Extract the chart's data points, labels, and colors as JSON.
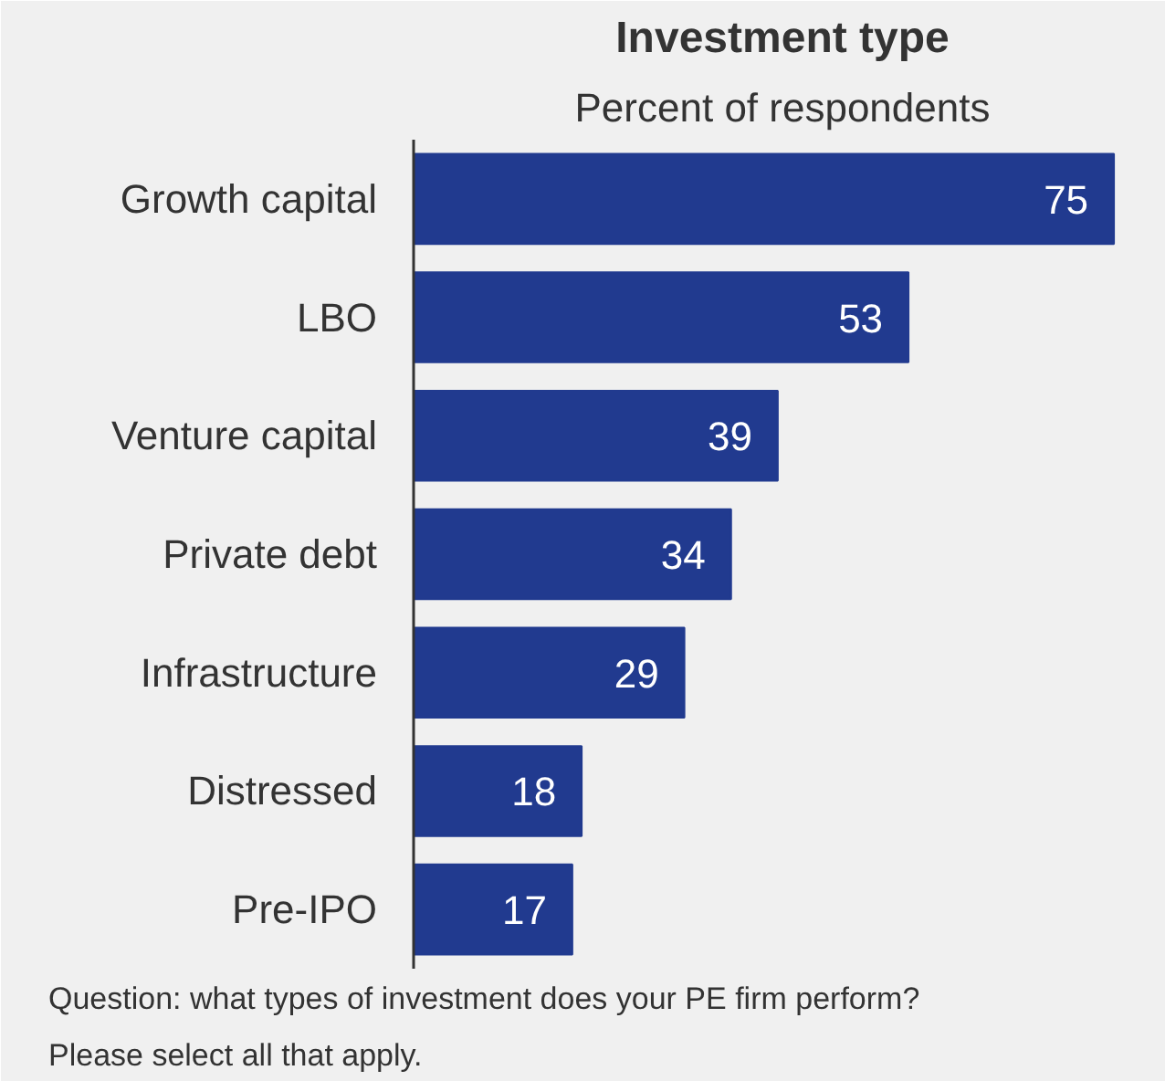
{
  "chart_data": {
    "type": "bar",
    "orientation": "horizontal",
    "title": "Investment type",
    "subtitle": "Percent of respondents",
    "categories": [
      "Growth capital",
      "LBO",
      "Venture capital",
      "Private debt",
      "Infrastructure",
      "Distressed",
      "Pre-IPO"
    ],
    "values": [
      75,
      53,
      39,
      34,
      29,
      18,
      17
    ],
    "color": "#213a8f",
    "data_labels": true,
    "xlim": [
      0,
      79
    ],
    "tick_labels": "y",
    "annotations": [
      "Question: what types of investment does your PE firm perform? Please select all that apply."
    ]
  }
}
